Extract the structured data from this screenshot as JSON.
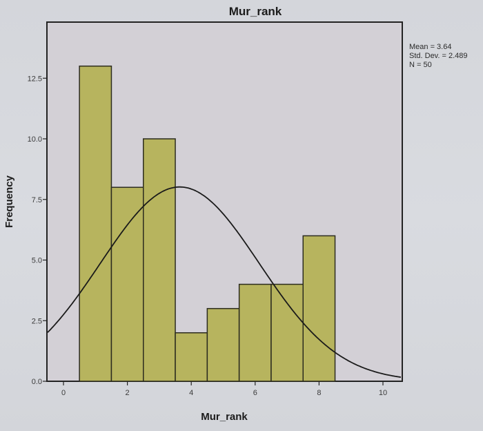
{
  "chart_data": {
    "type": "bar",
    "subtype": "histogram_with_normal_curve",
    "title": "Mur_rank",
    "xlabel": "Mur_rank",
    "ylabel": "Frequency",
    "bins": [
      {
        "center": 1,
        "from": 0.5,
        "to": 1.5,
        "count": 13
      },
      {
        "center": 2,
        "from": 1.5,
        "to": 2.5,
        "count": 8
      },
      {
        "center": 3,
        "from": 2.5,
        "to": 3.5,
        "count": 10
      },
      {
        "center": 4,
        "from": 3.5,
        "to": 4.5,
        "count": 2
      },
      {
        "center": 5,
        "from": 4.5,
        "to": 5.5,
        "count": 3
      },
      {
        "center": 6,
        "from": 5.5,
        "to": 6.5,
        "count": 4
      },
      {
        "center": 7,
        "from": 6.5,
        "to": 7.5,
        "count": 4
      },
      {
        "center": 8,
        "from": 7.5,
        "to": 8.5,
        "count": 6
      }
    ],
    "categories": [
      "1",
      "2",
      "3",
      "4",
      "5",
      "6",
      "7",
      "8"
    ],
    "values": [
      13,
      8,
      10,
      2,
      3,
      4,
      4,
      6
    ],
    "normal_curve": {
      "mean": 3.64,
      "std_dev": 2.489,
      "n": 50,
      "bin_width": 1
    },
    "x_ticks": [
      "0",
      "2",
      "4",
      "6",
      "8",
      "10"
    ],
    "y_ticks": [
      "0.0",
      "2.5",
      "5.0",
      "7.5",
      "10.0",
      "12.5"
    ],
    "xlim": [
      -0.5,
      10.5
    ],
    "ylim": [
      0,
      14.2
    ],
    "grid": false,
    "legend": null,
    "annotations": [
      "Mean = 3.64",
      "Std. Dev. = 2.489",
      "N = 50"
    ]
  },
  "stats_box": {
    "mean": "Mean = 3.64",
    "std_dev": "Std. Dev. = 2.489",
    "n": "N = 50"
  },
  "colors": {
    "bar_fill": "#b7b45e",
    "bar_stroke": "#2b2b1f",
    "plot_bg": "#d3d0d6",
    "curve": "#1a1a1a",
    "frame": "#222222"
  }
}
